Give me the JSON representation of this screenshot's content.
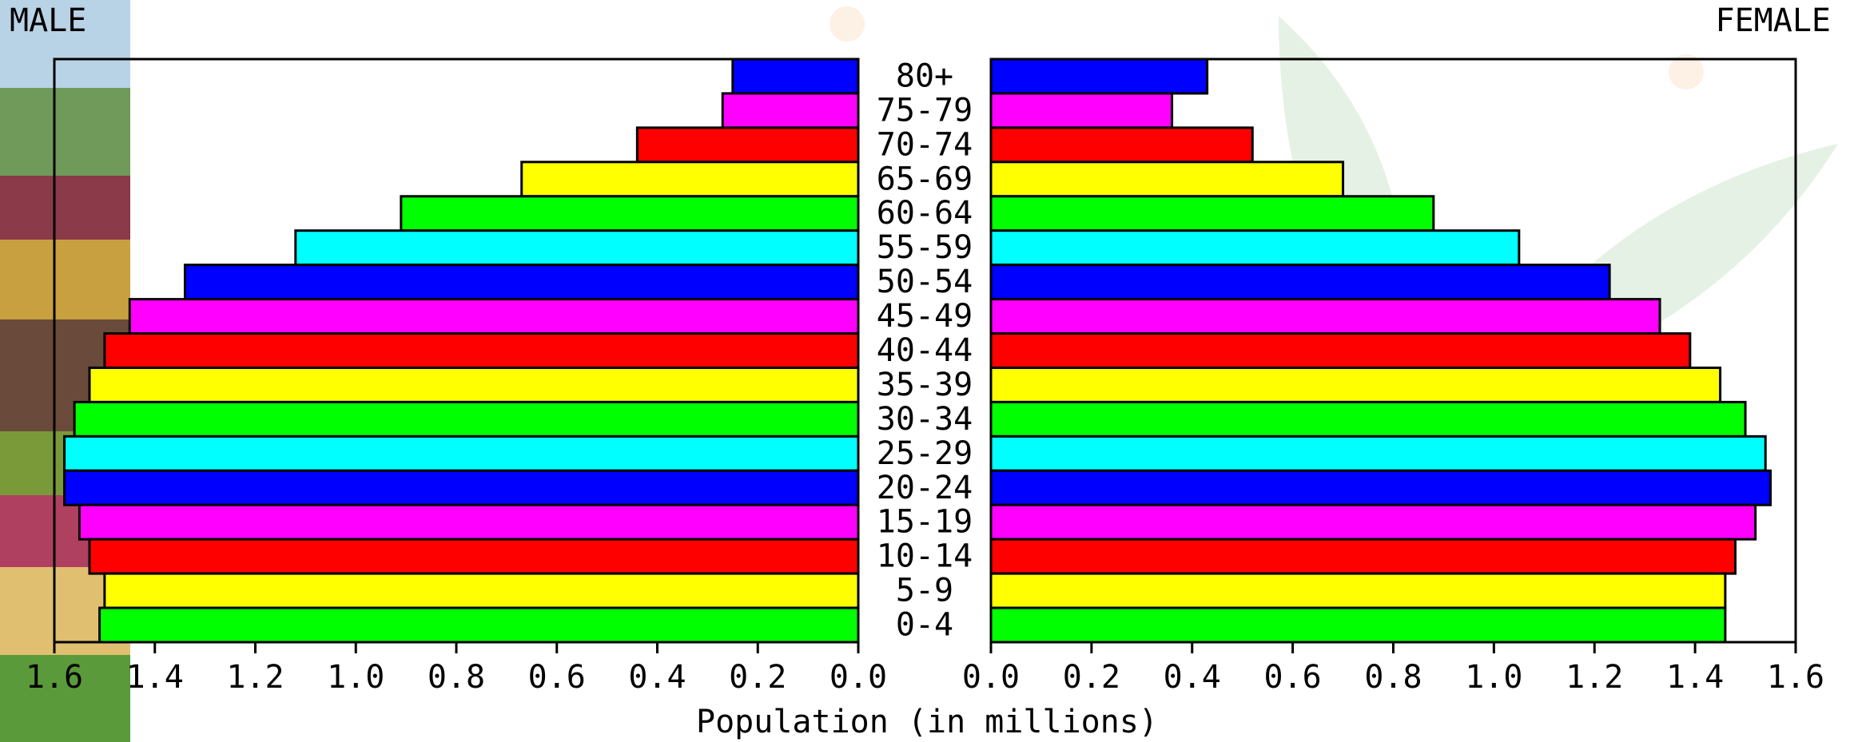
{
  "chart_data": {
    "type": "pyramid",
    "x_label": "Population (in millions)",
    "categories": [
      "80+",
      "75-79",
      "70-74",
      "65-69",
      "60-64",
      "55-59",
      "50-54",
      "45-49",
      "40-44",
      "35-39",
      "30-34",
      "25-29",
      "20-24",
      "15-19",
      "10-14",
      "5-9",
      "0-4"
    ],
    "colors": [
      "#0000ff",
      "#ff00ff",
      "#ff0000",
      "#ffff00",
      "#00ff00",
      "#00ffff",
      "#0000ff",
      "#ff00ff",
      "#ff0000",
      "#ffff00",
      "#00ff00",
      "#00ffff",
      "#0000ff",
      "#ff00ff",
      "#ff0000",
      "#ffff00",
      "#00ff00"
    ],
    "series": [
      {
        "name": "MALE",
        "values": [
          0.25,
          0.27,
          0.44,
          0.67,
          0.91,
          1.12,
          1.34,
          1.45,
          1.5,
          1.53,
          1.56,
          1.58,
          1.58,
          1.55,
          1.53,
          1.5,
          1.51
        ]
      },
      {
        "name": "FEMALE",
        "values": [
          0.43,
          0.36,
          0.52,
          0.7,
          0.88,
          1.05,
          1.23,
          1.33,
          1.39,
          1.45,
          1.5,
          1.54,
          1.55,
          1.52,
          1.48,
          1.46,
          1.46
        ]
      }
    ],
    "xlim": [
      0,
      1.6
    ],
    "xticks": [
      {
        "value": 0,
        "label": "0.0"
      },
      0.2,
      0.4,
      0.6,
      0.8,
      {
        "value": 1,
        "label": "1.0"
      },
      1.2,
      1.4,
      1.6
    ]
  }
}
